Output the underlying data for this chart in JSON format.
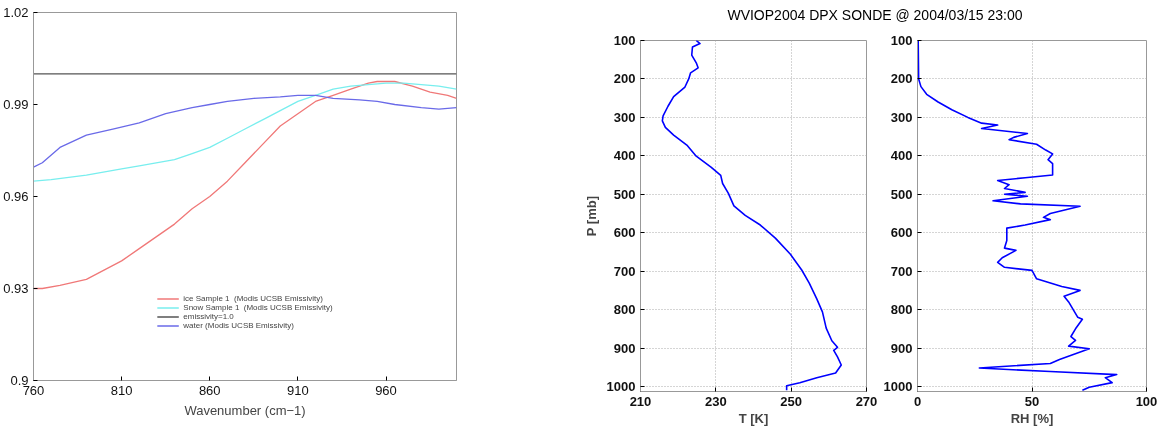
{
  "chart_data": [
    {
      "type": "line",
      "xlabel": "Wavenumber (cm−1)",
      "xlim": [
        760,
        1000
      ],
      "xticks": [
        760,
        810,
        860,
        910,
        960
      ],
      "ylim": [
        0.9,
        1.02
      ],
      "yticks": [
        0.9,
        0.93,
        0.96,
        0.99,
        1.02
      ],
      "grid": false,
      "legend": "bottom",
      "series": [
        {
          "name": "ice Sample 1  (Modis UCSB Emissivity)",
          "color": "#f07878",
          "x": [
            760,
            765,
            775,
            790,
            800,
            810,
            820,
            830,
            840,
            850,
            860,
            870,
            880,
            890,
            900,
            910,
            920,
            930,
            940,
            950,
            955,
            965,
            975,
            985,
            995,
            1000
          ],
          "values": [
            0.93,
            0.93,
            0.931,
            0.933,
            0.936,
            0.939,
            0.943,
            0.947,
            0.951,
            0.956,
            0.96,
            0.965,
            0.971,
            0.977,
            0.983,
            0.987,
            0.991,
            0.993,
            0.995,
            0.997,
            0.9975,
            0.9975,
            0.996,
            0.994,
            0.993,
            0.992
          ]
        },
        {
          "name": "Snow Sample 1  (Modis UCSB Emissivity)",
          "color": "#78eeee",
          "x": [
            760,
            770,
            790,
            810,
            820,
            840,
            850,
            860,
            870,
            880,
            890,
            900,
            910,
            920,
            930,
            940,
            950,
            960,
            970,
            980,
            990,
            1000
          ],
          "values": [
            0.965,
            0.9655,
            0.967,
            0.969,
            0.97,
            0.972,
            0.974,
            0.976,
            0.979,
            0.982,
            0.985,
            0.988,
            0.991,
            0.993,
            0.995,
            0.996,
            0.9965,
            0.997,
            0.997,
            0.9965,
            0.996,
            0.995
          ]
        },
        {
          "name": "emissivity=1.0",
          "color": "#555555",
          "x": [
            760,
            1000
          ],
          "values": [
            1.0,
            1.0
          ]
        },
        {
          "name": "water (Modis UCSB Emissivity)",
          "color": "#6a6ae8",
          "x": [
            760,
            765,
            775,
            790,
            805,
            820,
            835,
            850,
            860,
            870,
            885,
            900,
            910,
            920,
            930,
            945,
            955,
            965,
            980,
            990,
            1000
          ],
          "values": [
            0.9696,
            0.971,
            0.976,
            0.98,
            0.982,
            0.984,
            0.987,
            0.989,
            0.99,
            0.991,
            0.992,
            0.9925,
            0.993,
            0.993,
            0.992,
            0.9915,
            0.991,
            0.99,
            0.989,
            0.9885,
            0.989
          ]
        }
      ]
    },
    {
      "type": "line",
      "title": "WVIOP2004 DPX SONDE @ 2004/03/15 23:00",
      "xlabel": "T [K]",
      "ylabel": "P [mb]",
      "xlim": [
        210,
        270
      ],
      "xticks": [
        210,
        230,
        250,
        270
      ],
      "ylim": [
        1013,
        100
      ],
      "yticks": [
        100,
        200,
        300,
        400,
        500,
        600,
        700,
        800,
        900,
        1000
      ],
      "grid": true,
      "series": [
        {
          "color": "#0000ff",
          "x": [
            224.8,
            225.8,
            223.8,
            223.6,
            224.8,
            225.3,
            223.3,
            222.8,
            221.8,
            218.8,
            217.3,
            216,
            215.8,
            216.6,
            218.8,
            222.3,
            224.8,
            228.8,
            231.3,
            231.8,
            233.3,
            234.8,
            237.8,
            241.8,
            245.8,
            249.8,
            252.8,
            254.8,
            256.8,
            258.3,
            259.3,
            260.8,
            262.3,
            261.3,
            262.3,
            263.3,
            261.8,
            256.8,
            252.3,
            248.8,
            248.8
          ],
          "values": [
            100,
            108,
            117,
            138,
            158,
            171,
            184,
            200,
            221,
            246,
            271,
            296,
            309,
            326,
            346,
            372,
            401,
            430,
            451,
            472,
            497,
            530,
            555,
            580,
            614,
            656,
            697,
            731,
            772,
            806,
            848,
            881,
            898,
            906,
            923,
            944,
            965,
            977,
            990,
            998,
            1010
          ]
        }
      ]
    },
    {
      "type": "line",
      "xlabel": "RH [%]",
      "xlim": [
        0,
        100
      ],
      "xticks": [
        0,
        50,
        100
      ],
      "ylim": [
        1013,
        100
      ],
      "yticks": [
        100,
        200,
        300,
        400,
        500,
        600,
        700,
        800,
        900,
        1000
      ],
      "grid": true,
      "series": [
        {
          "color": "#0000ff",
          "x": [
            0.3,
            0.5,
            1.5,
            4,
            9,
            15,
            22,
            28,
            35,
            28,
            48,
            42,
            40,
            52,
            56,
            59,
            57,
            59,
            59,
            47,
            35,
            40,
            38,
            47,
            38,
            48,
            33,
            45,
            71,
            58,
            55,
            58,
            47,
            39,
            39,
            38,
            43,
            37,
            35,
            38,
            50,
            52,
            63,
            71,
            64,
            66,
            68,
            70,
            72,
            69,
            67,
            69,
            66,
            75,
            62,
            58,
            27,
            58,
            87,
            82,
            85,
            75,
            72
          ],
          "values": [
            100,
            200,
            220,
            240,
            260,
            280,
            300,
            315,
            320,
            329,
            342,
            352,
            358,
            370,
            385,
            395,
            410,
            420,
            450,
            457,
            464,
            475,
            485,
            495,
            500,
            505,
            517,
            525,
            531,
            550,
            560,
            566,
            580,
            588,
            620,
            640,
            646,
            665,
            677,
            690,
            698,
            720,
            740,
            750,
            765,
            780,
            800,
            820,
            825,
            850,
            870,
            880,
            895,
            902,
            930,
            940,
            952,
            961,
            969,
            977,
            990,
            1002,
            1010
          ]
        }
      ]
    }
  ]
}
